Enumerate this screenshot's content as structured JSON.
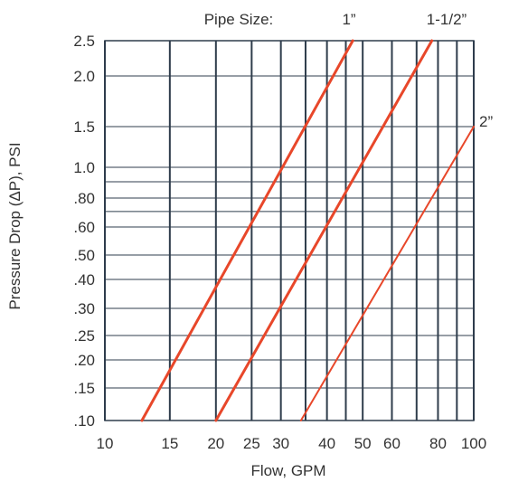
{
  "chart_data": {
    "type": "line",
    "title": "",
    "xlabel": "Flow, GPM",
    "ylabel": "Pressure Drop (ΔP), PSI",
    "x_scale": "log",
    "y_scale": "custom-nonlinear",
    "xlim": [
      10,
      100
    ],
    "ylim": [
      0.1,
      2.5
    ],
    "x_ticks": [
      10,
      15,
      20,
      25,
      30,
      40,
      50,
      60,
      80,
      100
    ],
    "x_tick_labels": [
      "10",
      "15",
      "20",
      "25",
      "30",
      "40",
      "50",
      "60",
      "80",
      "100"
    ],
    "y_ticks": [
      0.1,
      0.15,
      0.2,
      0.25,
      0.3,
      0.4,
      0.5,
      0.6,
      0.8,
      1.0,
      1.5,
      2.0,
      2.5
    ],
    "y_tick_labels": [
      ".10",
      ".15",
      ".20",
      ".25",
      ".30",
      ".40",
      ".50",
      ".60",
      ".80",
      "1.0",
      "1.5",
      "2.0",
      "2.5"
    ],
    "x_gridlines": [
      10,
      15,
      20,
      25,
      30,
      35,
      40,
      45,
      50,
      60,
      70,
      80,
      90,
      100
    ],
    "y_gridlines": [
      0.1,
      0.15,
      0.2,
      0.25,
      0.3,
      0.4,
      0.5,
      0.6,
      0.7,
      0.8,
      0.9,
      1.0,
      1.5,
      2.0,
      2.5
    ],
    "grid": true,
    "legend": "none",
    "header_label": "Pipe Size:",
    "line_color": "#e8472a",
    "grid_color": "#2f3d4c",
    "series": [
      {
        "name": "1”",
        "points": [
          [
            12.6,
            0.1
          ],
          [
            47.0,
            2.5
          ]
        ]
      },
      {
        "name": "1-1/2”",
        "points": [
          [
            20.0,
            0.1
          ],
          [
            77.0,
            2.5
          ]
        ]
      },
      {
        "name": "2”",
        "points": [
          [
            34.0,
            0.1
          ],
          [
            100,
            1.5
          ]
        ]
      }
    ]
  }
}
